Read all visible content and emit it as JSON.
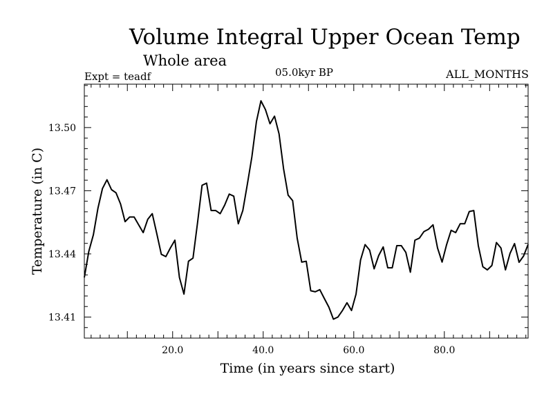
{
  "chart_data": {
    "type": "line",
    "title": "Volume Integral Upper Ocean Temp",
    "subtitle": "Whole area",
    "expt_label": "Expt = teadf",
    "period_label": "05.0kyr BP",
    "months_label": "ALL_MONTHS",
    "xlabel": "Time (in years since start)",
    "ylabel": "Temperature (in C)",
    "xlim": [
      0.5,
      98.5
    ],
    "ylim": [
      13.4,
      13.5206
    ],
    "x_ticks": [
      20,
      40,
      60,
      80
    ],
    "x_tick_labels": [
      "20.0",
      "40.0",
      "60.0",
      "80.0"
    ],
    "y_ticks": [
      13.41,
      13.44,
      13.47,
      13.5
    ],
    "y_tick_labels": [
      "13.41",
      "13.44",
      "13.47",
      "13.50"
    ],
    "series": [
      {
        "name": "temperature",
        "color": "#000000",
        "x": [
          0.5,
          1.5,
          2.5,
          3.5,
          4.5,
          5.5,
          6.5,
          7.5,
          8.5,
          9.5,
          10.5,
          11.5,
          12.5,
          13.5,
          14.5,
          15.5,
          16.5,
          17.5,
          18.5,
          19.5,
          20.5,
          21.5,
          22.5,
          23.5,
          24.5,
          25.5,
          26.5,
          27.5,
          28.5,
          29.5,
          30.5,
          31.5,
          32.5,
          33.5,
          34.5,
          35.5,
          36.5,
          37.5,
          38.5,
          39.5,
          40.5,
          41.5,
          42.5,
          43.5,
          44.5,
          45.5,
          46.5,
          47.5,
          48.5,
          49.5,
          50.5,
          51.5,
          52.5,
          53.5,
          54.5,
          55.5,
          56.5,
          57.5,
          58.5,
          59.5,
          60.5,
          61.5,
          62.5,
          63.5,
          64.5,
          65.5,
          66.5,
          67.5,
          68.5,
          69.5,
          70.5,
          71.5,
          72.5,
          73.5,
          74.5,
          75.5,
          76.5,
          77.5,
          78.5,
          79.5,
          80.5,
          81.5,
          82.5,
          83.5,
          84.5,
          85.5,
          86.5,
          87.5,
          88.5,
          89.5,
          90.5,
          91.5,
          92.5,
          93.5,
          94.5,
          95.5,
          96.5,
          97.5,
          98.5
        ],
        "values": [
          13.4288,
          13.4413,
          13.4491,
          13.4616,
          13.471,
          13.4752,
          13.4705,
          13.469,
          13.4637,
          13.4553,
          13.4575,
          13.4575,
          13.4538,
          13.4501,
          13.4564,
          13.4591,
          13.4496,
          13.4398,
          13.4387,
          13.4428,
          13.4465,
          13.4288,
          13.4209,
          13.4365,
          13.438,
          13.4548,
          13.4726,
          13.4736,
          13.4606,
          13.4606,
          13.4591,
          13.4632,
          13.4684,
          13.4674,
          13.4543,
          13.4606,
          13.4731,
          13.4861,
          13.5028,
          13.5127,
          13.5085,
          13.5018,
          13.5054,
          13.497,
          13.4804,
          13.4679,
          13.4653,
          13.4475,
          13.4361,
          13.4365,
          13.4225,
          13.422,
          13.423,
          13.4188,
          13.4147,
          13.409,
          13.41,
          13.4131,
          13.4168,
          13.4131,
          13.4209,
          13.4371,
          13.4444,
          13.4418,
          13.4329,
          13.4392,
          13.4433,
          13.4334,
          13.4334,
          13.4439,
          13.4439,
          13.4407,
          13.4313,
          13.4465,
          13.4475,
          13.4506,
          13.4517,
          13.4538,
          13.4428,
          13.4361,
          13.4444,
          13.4512,
          13.4501,
          13.4543,
          13.4543,
          13.4601,
          13.4606,
          13.4439,
          13.4339,
          13.4324,
          13.4345,
          13.4454,
          13.4428,
          13.4324,
          13.4402,
          13.4449,
          13.436,
          13.439,
          13.4445
        ]
      }
    ]
  }
}
